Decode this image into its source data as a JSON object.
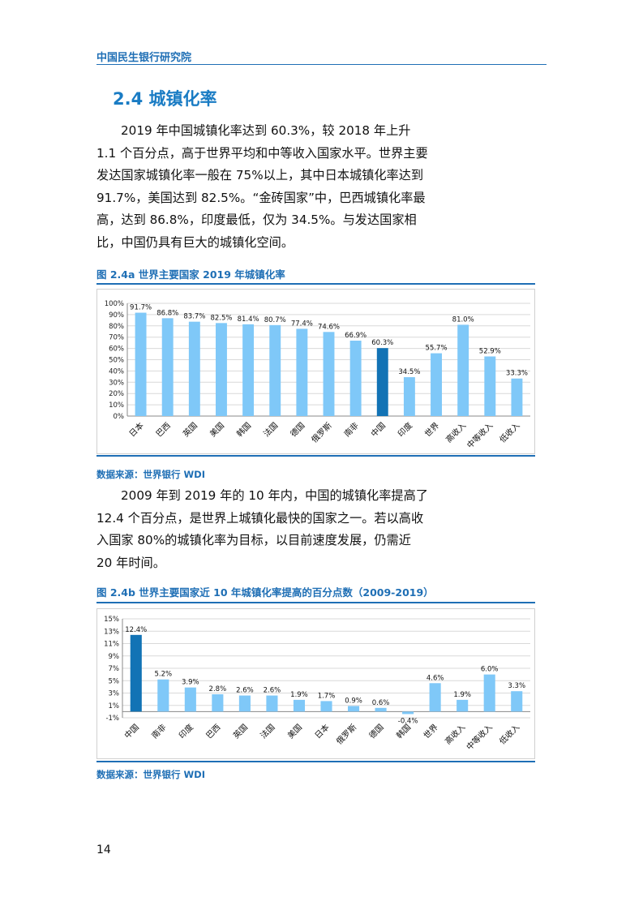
{
  "header": {
    "org_name": "中国民生银行研究院"
  },
  "section": {
    "title": "2.4 城镇化率"
  },
  "paragraphs": [
    "2019 年中国城镇化率达到 60.3%，较 2018 年上升 1.1 个百分点，高于世界平均和中等收入国家水平。世界主要发达国家城镇化率一般在 75%以上，其中日本城镇化率达到 91.7%，美国达到 82.5%。“金砖国家”中，巴西城镇化率最高，达到 86.8%，印度最低，仅为 34.5%。与发达国家相比，中国仍具有巨大的城镇化空间。",
    "2009 年到 2019 年的 10 年内，中国的城镇化率提高了 12.4 个百分点，是世界上城镇化最快的国家之一。若以高收入国家 80%的城镇化率为目标，以目前速度发展，仍需近 20 年时间。"
  ],
  "figures": [
    {
      "caption": "图 2.4a  世界主要国家 2019 年城镇化率",
      "source": "数据来源：世界银行 WDI"
    },
    {
      "caption": "图 2.4b 世界主要国家近 10 年城镇化率提高的百分点数（2009-2019）",
      "source": "数据来源：世界银行 WDI"
    }
  ],
  "chart_data": [
    {
      "type": "bar",
      "categories": [
        "日本",
        "巴西",
        "英国",
        "美国",
        "韩国",
        "法国",
        "德国",
        "俄罗斯",
        "南非",
        "中国",
        "印度",
        "世界",
        "高收入",
        "中等收入",
        "低收入"
      ],
      "values": [
        91.7,
        86.8,
        83.7,
        82.5,
        81.4,
        80.7,
        77.4,
        74.6,
        66.9,
        60.3,
        34.5,
        55.7,
        81.0,
        52.9,
        33.3
      ],
      "data_labels": [
        "91.7%",
        "86.8%",
        "83.7%",
        "82.5%",
        "81.4%",
        "80.7%",
        "77.4%",
        "74.6%",
        "66.9%",
        "60.3%",
        "34.5%",
        "55.7%",
        "81.0%",
        "52.9%",
        "33.3%"
      ],
      "highlight": "中国",
      "ylim": [
        0,
        100
      ],
      "yticks": [
        0,
        10,
        20,
        30,
        40,
        50,
        60,
        70,
        80,
        90,
        100
      ],
      "ytick_labels": [
        "0%",
        "10%",
        "20%",
        "30%",
        "40%",
        "50%",
        "60%",
        "70%",
        "80%",
        "90%",
        "100%"
      ],
      "grid": true,
      "colors": {
        "bar": "#7fc8f8",
        "highlight": "#1273b5"
      }
    },
    {
      "type": "bar",
      "categories": [
        "中国",
        "南非",
        "印度",
        "巴西",
        "英国",
        "法国",
        "美国",
        "日本",
        "俄罗斯",
        "德国",
        "韩国",
        "世界",
        "高收入",
        "中等收入",
        "低收入"
      ],
      "values": [
        12.4,
        5.2,
        3.9,
        2.8,
        2.6,
        2.6,
        1.9,
        1.7,
        0.9,
        0.6,
        -0.4,
        4.6,
        1.9,
        6.0,
        3.3
      ],
      "data_labels": [
        "12.4%",
        "5.2%",
        "3.9%",
        "2.8%",
        "2.6%",
        "2.6%",
        "1.9%",
        "1.7%",
        "0.9%",
        "0.6%",
        "-0.4%",
        "4.6%",
        "1.9%",
        "6.0%",
        "3.3%"
      ],
      "highlight": "中国",
      "ylim": [
        -1,
        15
      ],
      "yticks": [
        -1,
        1,
        3,
        5,
        7,
        9,
        11,
        13,
        15
      ],
      "ytick_labels": [
        "-1%",
        "1%",
        "3%",
        "5%",
        "7%",
        "9%",
        "11%",
        "13%",
        "15%"
      ],
      "grid": true,
      "colors": {
        "bar": "#7fc8f8",
        "highlight": "#1273b5"
      }
    }
  ],
  "page": {
    "number": "14"
  }
}
